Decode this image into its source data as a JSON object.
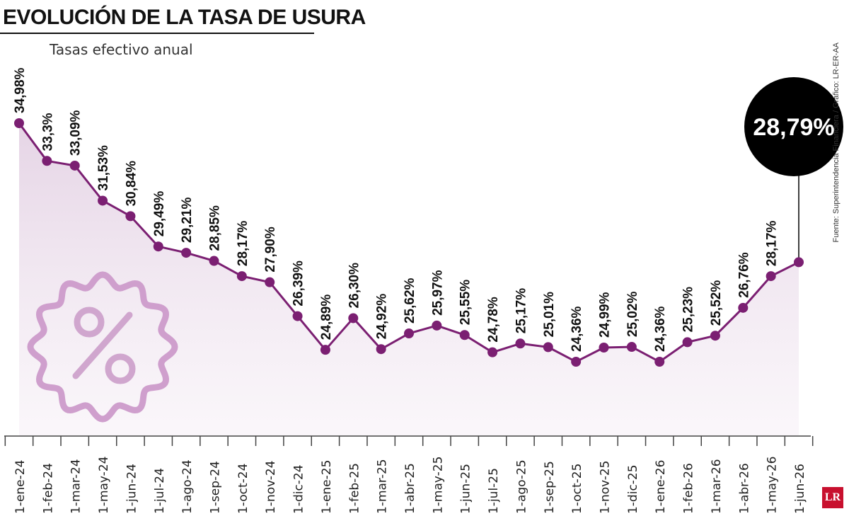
{
  "title": "EVOLUCIÓN DE LA TASA DE USURA",
  "subtitle": "Tasas efectivo anual",
  "source": "Fuente: Superintendencia Financiera / Gráfico: LR-ER-AA",
  "logo": "LR",
  "highlight_label": "28,79%",
  "colors": {
    "line": "#7b1f72",
    "area": "#eadbea",
    "badge": "#cf9fcd",
    "highlight": "#000000"
  },
  "icon": "percent-badge-icon",
  "chart_data": {
    "type": "line",
    "title": "EVOLUCIÓN DE LA TASA DE USURA",
    "subtitle": "Tasas efectivo anual",
    "xlabel": "",
    "ylabel": "",
    "grid": false,
    "categories": [
      "1-ene-24",
      "1-feb-24",
      "1-mar-24",
      "1-may-24",
      "1-jun-24",
      "1-jul-24",
      "1-ago-24",
      "1-sep-24",
      "1-oct-24",
      "1-nov-24",
      "1-dic-24",
      "1-ene-25",
      "1-feb-25",
      "1-mar-25",
      "1-abr-25",
      "1-may-25",
      "1-jun-25",
      "1-jul-25",
      "1-ago-25",
      "1-sep-25",
      "1-oct-25",
      "1-nov-25",
      "1-dic-25",
      "1-ene-26",
      "1-feb-26",
      "1-mar-26",
      "1-abr-26",
      "1-may-26",
      "1-jun-26"
    ],
    "values": [
      34.98,
      33.3,
      33.09,
      31.53,
      30.84,
      29.49,
      29.21,
      28.85,
      28.17,
      27.9,
      26.39,
      24.89,
      26.3,
      24.92,
      25.62,
      25.97,
      25.55,
      24.78,
      25.17,
      25.01,
      24.36,
      24.99,
      25.02,
      24.36,
      25.23,
      25.52,
      26.76,
      28.17,
      28.79
    ],
    "labels": [
      "34,98%",
      "33,3%",
      "33,09%",
      "31,53%",
      "30,84%",
      "29,49%",
      "29,21%",
      "28,85%",
      "28,17%",
      "27,90%",
      "26,39%",
      "24,89%",
      "26,30%",
      "24,92%",
      "25,62%",
      "25,97%",
      "25,55%",
      "24,78%",
      "25,17%",
      "25,01%",
      "24,36%",
      "24,99%",
      "25,02%",
      "24,36%",
      "25,23%",
      "25,52%",
      "26,76%",
      "28,17%",
      ""
    ]
  }
}
